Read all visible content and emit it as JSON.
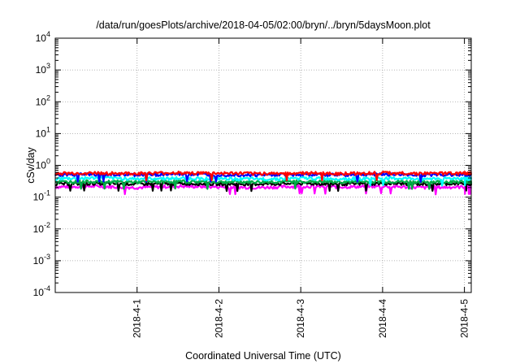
{
  "chart_data": {
    "type": "line",
    "title": "/data/run/goesPlots/archive/2018-04-05/02:00/bryn/../bryn/5daysMoon.plot",
    "xlabel": "Coordinated Universal Time (UTC)",
    "ylabel": "cSv/day",
    "yscale": "log",
    "ylim": [
      0.0001,
      10000
    ],
    "yticks": [
      {
        "value": 0.0001,
        "base": "10",
        "exp": "-4"
      },
      {
        "value": 0.001,
        "base": "10",
        "exp": "-3"
      },
      {
        "value": 0.01,
        "base": "10",
        "exp": "-2"
      },
      {
        "value": 0.1,
        "base": "10",
        "exp": "-1"
      },
      {
        "value": 1,
        "base": "10",
        "exp": "0"
      },
      {
        "value": 10,
        "base": "10",
        "exp": "1"
      },
      {
        "value": 100,
        "base": "10",
        "exp": "2"
      },
      {
        "value": 1000,
        "base": "10",
        "exp": "3"
      },
      {
        "value": 10000,
        "base": "10",
        "exp": "4"
      }
    ],
    "xlim": [
      "2018-03-31T00:00",
      "2018-04-05T02:00"
    ],
    "xticks": [
      {
        "value": "2018-04-01T00:00",
        "label": "2018-4-1"
      },
      {
        "value": "2018-04-02T00:00",
        "label": "2018-4-2"
      },
      {
        "value": "2018-04-03T00:00",
        "label": "2018-4-3"
      },
      {
        "value": "2018-04-04T00:00",
        "label": "2018-4-4"
      },
      {
        "value": "2018-04-05T00:00",
        "label": "2018-4-5"
      }
    ],
    "grid": true,
    "legend": "none",
    "x": [
      "2018-03-31T00:00",
      "2018-03-31T12:00",
      "2018-04-01T00:00",
      "2018-04-01T12:00",
      "2018-04-02T00:00",
      "2018-04-02T12:00",
      "2018-04-03T00:00",
      "2018-04-03T12:00",
      "2018-04-04T00:00",
      "2018-04-04T12:00",
      "2018-04-05T00:00",
      "2018-04-05T02:00"
    ],
    "series": [
      {
        "color": "#ff00ff",
        "values": [
          0.21,
          0.22,
          0.2,
          0.22,
          0.21,
          0.2,
          0.22,
          0.21,
          0.22,
          0.2,
          0.21,
          0.21
        ]
      },
      {
        "color": "#000000",
        "values": [
          0.26,
          0.27,
          0.26,
          0.27,
          0.26,
          0.26,
          0.27,
          0.26,
          0.27,
          0.26,
          0.27,
          0.26
        ]
      },
      {
        "color": "#00aa44",
        "values": [
          0.3,
          0.31,
          0.3,
          0.31,
          0.3,
          0.3,
          0.31,
          0.3,
          0.31,
          0.3,
          0.31,
          0.3
        ]
      },
      {
        "color": "#00ffff",
        "values": [
          0.38,
          0.4,
          0.38,
          0.39,
          0.38,
          0.37,
          0.39,
          0.38,
          0.39,
          0.38,
          0.39,
          0.38
        ]
      },
      {
        "color": "#0000ff",
        "values": [
          0.5,
          0.52,
          0.5,
          0.53,
          0.51,
          0.5,
          0.52,
          0.5,
          0.53,
          0.5,
          0.52,
          0.51
        ]
      },
      {
        "color": "#ff0000",
        "values": [
          0.55,
          0.57,
          0.55,
          0.58,
          0.56,
          0.55,
          0.57,
          0.55,
          0.58,
          0.55,
          0.57,
          0.56
        ]
      }
    ]
  }
}
